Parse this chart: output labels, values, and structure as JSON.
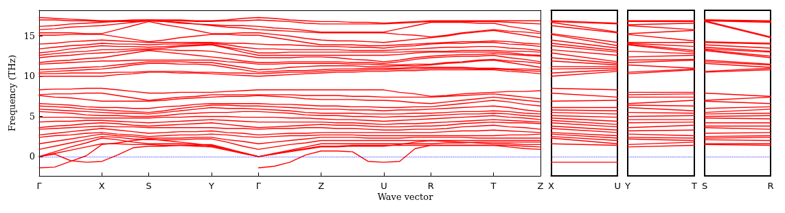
{
  "chart_data": [
    {
      "type": "line",
      "xlabel": "Wave vector",
      "ylabel": "Frequency (THz)",
      "color": "#ff0000",
      "marker": "none",
      "line_style": "solid",
      "grid": false,
      "categories": [
        "Γ",
        null,
        null,
        null,
        "X",
        null,
        null,
        "S",
        null,
        null,
        null,
        "Y",
        null,
        null,
        "Γ",
        null,
        null,
        null,
        "Z",
        null,
        null,
        null,
        "U",
        null,
        null,
        "R",
        null,
        null,
        null,
        "T",
        null,
        null,
        "Z"
      ],
      "ylim": [
        -2.4,
        18.2
      ],
      "yticks": [
        0,
        5,
        10,
        15
      ],
      "ref_lines": [
        {
          "axis": "y",
          "value": 0,
          "color": "#0000ff",
          "line_style": "dotted"
        }
      ],
      "series": [
        {
          "values": [
            -1.4,
            -1.3,
            -0.6,
            0.1,
            1.5,
            1.7,
            2.0,
            2.2,
            2.0,
            1.8,
            1.6,
            1.3,
            0.9,
            0.4,
            0,
            null,
            null,
            null,
            null,
            null,
            null,
            null,
            null,
            null,
            null,
            null,
            null,
            null,
            null,
            null,
            null,
            null,
            null
          ]
        },
        {
          "values": [
            null,
            null,
            null,
            null,
            null,
            null,
            null,
            null,
            null,
            null,
            null,
            null,
            null,
            null,
            -1.4,
            -1.2,
            -0.7,
            0.2,
            0.7,
            0.7,
            0.6,
            -0.6,
            -0.7,
            -0.6,
            1.0,
            1.4,
            1.4,
            1.4,
            1.4,
            1.4,
            1.2,
            1.0,
            0.9
          ]
        },
        {
          "values": [
            0,
            0.3,
            -0.5,
            -0.7,
            -0.6,
            0.2,
            1.1,
            1.3,
            1.3,
            1.4,
            1.4,
            1.4,
            0.9,
            0.5,
            0,
            0.3,
            0.6,
            0.9,
            1.2,
            1.2,
            1.3,
            1.3,
            1.3,
            1.5,
            1.8,
            2.0,
            1.9,
            1.8,
            1.7,
            1.6,
            1.6,
            1.5,
            1.5
          ]
        },
        {
          "values": [
            0,
            0.4,
            0.8,
            1.2,
            1.6,
            1.6,
            1.5,
            1.5,
            1.4,
            1.4,
            1.3,
            1.2,
            0.8,
            0.4,
            0,
            0.3,
            0.7,
            1.0,
            1.3,
            1.3,
            1.4,
            1.4,
            1.4,
            1.4,
            1.4,
            1.4,
            1.4,
            1.4,
            1.4,
            1.4,
            1.4,
            1.3,
            1.2
          ]
        },
        {
          "values": [
            0,
            0.6,
            1.2,
            1.7,
            2.3,
            2.1,
            1.8,
            1.6,
            1.6,
            1.6,
            1.5,
            1.5,
            1.0,
            0.5,
            0,
            0.4,
            0.8,
            1.2,
            1.6,
            1.6,
            1.6,
            1.6,
            1.6,
            1.6,
            1.6,
            1.6,
            1.7,
            1.7,
            1.8,
            1.8,
            1.8,
            1.8,
            1.8
          ]
        },
        {
          "values": [
            0.9,
            1.3,
            1.7,
            2.1,
            2.5,
            2.4,
            2.2,
            2.1,
            2.1,
            2.1,
            2.2,
            2.2,
            1.8,
            1.3,
            0.9,
            1.2,
            1.5,
            1.7,
            2.0,
            2.0,
            2.0,
            2.0,
            2.0,
            2.0,
            2.0,
            2.0,
            2.0,
            2.0,
            2.0,
            2.0,
            2.0,
            2.0,
            2.0
          ]
        },
        {
          "values": [
            1.6,
            1.9,
            2.2,
            2.5,
            2.8,
            2.6,
            2.5,
            2.3,
            2.3,
            2.3,
            2.4,
            2.4,
            2.1,
            1.9,
            1.6,
            1.8,
            2.0,
            2.2,
            2.4,
            2.4,
            2.4,
            2.3,
            2.3,
            2.3,
            2.4,
            2.4,
            2.4,
            2.4,
            2.3,
            2.3,
            2.3,
            2.3,
            2.3
          ]
        },
        {
          "values": [
            2.4,
            2.6,
            2.7,
            2.9,
            3.0,
            2.8,
            2.7,
            2.5,
            2.6,
            2.7,
            2.7,
            2.8,
            2.7,
            2.5,
            2.4,
            2.5,
            2.6,
            2.6,
            2.7,
            2.7,
            2.7,
            2.6,
            2.6,
            2.6,
            2.6,
            2.6,
            2.6,
            2.6,
            2.6,
            2.6,
            2.7,
            2.7,
            2.8
          ]
        },
        {
          "values": [
            2.7,
            2.9,
            3.1,
            3.3,
            3.5,
            3.3,
            3.1,
            2.9,
            3.0,
            3.1,
            3.1,
            3.2,
            3.0,
            2.9,
            2.7,
            2.8,
            2.9,
            2.9,
            3.0,
            3.0,
            3.0,
            3.0,
            3.0,
            3.0,
            3.0,
            3.0,
            3.1,
            3.2,
            3.2,
            3.3,
            3.2,
            3.1,
            3.0
          ]
        },
        {
          "values": [
            3.4,
            3.5,
            3.6,
            3.7,
            3.8,
            3.7,
            3.7,
            3.6,
            3.6,
            3.6,
            3.6,
            3.6,
            3.5,
            3.5,
            3.4,
            3.5,
            3.5,
            3.6,
            3.6,
            3.5,
            3.5,
            3.4,
            3.3,
            3.3,
            3.4,
            3.4,
            3.5,
            3.7,
            3.8,
            3.9,
            3.7,
            3.6,
            3.4
          ]
        },
        {
          "values": [
            3.6,
            3.8,
            3.9,
            4.1,
            4.2,
            4.1,
            3.9,
            3.8,
            3.9,
            4.0,
            4.1,
            4.2,
            4.0,
            3.8,
            3.6,
            3.7,
            3.8,
            3.9,
            4.0,
            3.9,
            3.9,
            3.8,
            3.7,
            3.7,
            3.8,
            3.8,
            3.9,
            4.1,
            4.2,
            4.3,
            4.2,
            4.2,
            4.1
          ]
        },
        {
          "values": [
            4.3,
            4.4,
            4.4,
            4.5,
            4.5,
            4.4,
            4.3,
            4.2,
            4.3,
            4.4,
            4.5,
            4.6,
            4.5,
            4.4,
            4.3,
            4.3,
            4.3,
            4.3,
            4.3,
            4.2,
            4.2,
            4.1,
            4.0,
            4.1,
            4.1,
            4.2,
            4.3,
            4.4,
            4.5,
            4.6,
            4.5,
            4.4,
            4.3
          ]
        },
        {
          "values": [
            4.9,
            4.9,
            4.9,
            4.8,
            4.8,
            4.8,
            4.8,
            4.8,
            4.9,
            4.9,
            5.0,
            5.0,
            5.0,
            4.9,
            4.9,
            4.9,
            4.8,
            4.8,
            4.7,
            4.6,
            4.6,
            4.5,
            4.4,
            4.5,
            4.6,
            4.7,
            4.8,
            4.9,
            5.0,
            5.1,
            4.9,
            4.8,
            4.6
          ]
        },
        {
          "values": [
            5.6,
            5.5,
            5.4,
            5.2,
            5.1,
            5.1,
            5.0,
            5.0,
            5.1,
            5.3,
            5.4,
            5.5,
            5.5,
            5.6,
            5.6,
            5.5,
            5.4,
            5.2,
            5.1,
            5.1,
            5.0,
            5.0,
            4.9,
            5.0,
            5.0,
            5.1,
            5.2,
            5.3,
            5.3,
            5.4,
            5.3,
            5.1,
            5.0
          ]
        },
        {
          "values": [
            5.9,
            5.8,
            5.7,
            5.6,
            5.5,
            5.4,
            5.4,
            5.3,
            5.5,
            5.7,
            5.9,
            6.1,
            6.0,
            6.0,
            5.9,
            5.8,
            5.7,
            5.5,
            5.4,
            5.4,
            5.4,
            5.3,
            5.3,
            5.3,
            5.4,
            5.4,
            5.5,
            5.6,
            5.6,
            5.7,
            5.6,
            5.4,
            5.3
          ]
        },
        {
          "values": [
            6.3,
            6.2,
            6.1,
            5.9,
            5.8,
            5.7,
            5.6,
            5.5,
            5.7,
            6.0,
            6.2,
            6.4,
            6.4,
            6.3,
            6.3,
            6.2,
            6.1,
            6.0,
            5.9,
            5.9,
            5.8,
            5.8,
            5.7,
            5.8,
            5.8,
            5.9,
            6.0,
            6.1,
            6.2,
            6.3,
            6.1,
            5.8,
            5.6
          ]
        },
        {
          "values": [
            6.6,
            6.5,
            6.4,
            6.2,
            6.1,
            6.1,
            6.0,
            6.0,
            6.2,
            6.3,
            6.5,
            6.6,
            6.6,
            6.6,
            6.6,
            6.5,
            6.5,
            6.4,
            6.3,
            6.3,
            6.2,
            6.2,
            6.1,
            6.1,
            6.2,
            6.2,
            6.4,
            6.6,
            6.8,
            7.0,
            6.8,
            6.5,
            6.3
          ]
        },
        {
          "values": [
            7.6,
            7.4,
            7.3,
            7.1,
            6.9,
            6.9,
            6.9,
            6.9,
            7.0,
            7.2,
            7.3,
            7.4,
            7.5,
            7.5,
            7.6,
            7.5,
            7.4,
            7.2,
            7.1,
            7.1,
            7.1,
            7.0,
            7.0,
            6.9,
            6.7,
            6.6,
            6.8,
            7.0,
            7.2,
            7.4,
            7.2,
            7.0,
            6.8
          ]
        },
        {
          "values": [
            7.7,
            7.8,
            7.8,
            7.9,
            7.9,
            7.6,
            7.3,
            7.0,
            7.2,
            7.4,
            7.5,
            7.7,
            7.7,
            7.7,
            7.7,
            7.7,
            7.7,
            7.6,
            7.6,
            7.6,
            7.5,
            7.5,
            7.4,
            7.4,
            7.4,
            7.4,
            7.5,
            7.6,
            7.7,
            7.8,
            7.6,
            7.4,
            7.2
          ]
        },
        {
          "values": [
            8.3,
            8.4,
            8.4,
            8.5,
            8.5,
            8.3,
            8.1,
            7.9,
            7.9,
            8.0,
            8.0,
            8.0,
            8.1,
            8.2,
            8.3,
            8.3,
            8.3,
            8.3,
            8.3,
            8.3,
            8.3,
            8.3,
            8.3,
            8.0,
            7.8,
            7.5,
            7.6,
            7.8,
            7.9,
            8.0,
            8.1,
            8.1,
            8.2
          ]
        },
        {
          "values": [
            10.0,
            10.0,
            10.0,
            10.0,
            10.0,
            10.2,
            10.3,
            10.5,
            10.5,
            10.4,
            10.4,
            10.3,
            10.2,
            10.1,
            10.0,
            10.1,
            10.2,
            10.3,
            10.4,
            10.5,
            10.5,
            10.6,
            10.6,
            10.7,
            10.7,
            10.8,
            10.8,
            10.8,
            10.8,
            10.8,
            10.6,
            10.5,
            10.3
          ]
        },
        {
          "values": [
            10.3,
            10.3,
            10.4,
            10.4,
            10.4,
            10.5,
            10.5,
            10.6,
            10.6,
            10.6,
            10.5,
            10.5,
            10.4,
            10.4,
            10.3,
            10.4,
            10.5,
            10.5,
            10.6,
            10.7,
            10.7,
            10.8,
            10.8,
            10.9,
            10.9,
            11.0,
            11.0,
            11.0,
            10.9,
            10.9,
            10.8,
            10.7,
            10.6
          ]
        },
        {
          "values": [
            10.5,
            10.6,
            10.7,
            10.8,
            10.9,
            11.1,
            11.4,
            11.6,
            11.6,
            11.5,
            11.5,
            11.4,
            11.1,
            10.8,
            10.5,
            10.6,
            10.7,
            10.7,
            10.8,
            10.9,
            10.9,
            11.0,
            11.0,
            11.0,
            11.1,
            11.1,
            11.1,
            11.1,
            11.0,
            11.0,
            10.9,
            10.9,
            10.8
          ]
        },
        {
          "values": [
            10.8,
            10.9,
            11.0,
            11.1,
            11.2,
            11.4,
            11.6,
            11.8,
            11.8,
            11.8,
            11.7,
            11.7,
            11.4,
            11.1,
            10.8,
            10.9,
            11.1,
            11.2,
            11.3,
            11.3,
            11.3,
            11.2,
            11.2,
            11.3,
            11.3,
            11.4,
            11.6,
            11.7,
            11.9,
            12.0,
            11.7,
            11.4,
            11.1
          ]
        },
        {
          "values": [
            11.5,
            11.6,
            11.7,
            11.8,
            11.9,
            11.9,
            12.0,
            12.0,
            12.0,
            12.0,
            12.0,
            12.0,
            11.8,
            11.7,
            11.5,
            11.5,
            11.6,
            11.6,
            11.6,
            11.6,
            11.5,
            11.5,
            11.4,
            11.4,
            11.5,
            11.5,
            11.7,
            11.8,
            12.0,
            12.1,
            11.9,
            11.8,
            11.6
          ]
        },
        {
          "values": [
            11.7,
            11.9,
            12.0,
            12.2,
            12.3,
            12.6,
            12.9,
            13.2,
            13.0,
            12.8,
            12.6,
            12.4,
            12.2,
            11.9,
            11.7,
            11.7,
            11.8,
            11.8,
            11.8,
            11.8,
            11.7,
            11.7,
            11.6,
            11.8,
            12.1,
            12.3,
            12.4,
            12.5,
            12.5,
            12.6,
            12.3,
            12.1,
            11.8
          ]
        },
        {
          "values": [
            12.3,
            12.5,
            12.6,
            12.8,
            12.9,
            13.0,
            13.2,
            13.3,
            13.3,
            13.2,
            13.2,
            13.1,
            12.8,
            12.6,
            12.3,
            12.3,
            12.3,
            12.4,
            12.4,
            12.3,
            12.1,
            12.0,
            11.8,
            12.0,
            12.3,
            12.5,
            12.6,
            12.7,
            12.7,
            12.8,
            12.7,
            12.6,
            12.5
          ]
        },
        {
          "values": [
            12.6,
            12.8,
            13.0,
            13.1,
            13.3,
            13.3,
            13.4,
            13.4,
            13.5,
            13.7,
            13.8,
            13.9,
            13.5,
            13.0,
            12.6,
            12.6,
            12.6,
            12.6,
            12.6,
            12.6,
            12.6,
            12.6,
            12.6,
            12.7,
            12.9,
            13.0,
            13.0,
            13.0,
            13.0,
            13.0,
            12.9,
            12.7,
            12.6
          ]
        },
        {
          "values": [
            12.9,
            13.1,
            13.4,
            13.6,
            13.8,
            13.7,
            13.7,
            13.6,
            13.7,
            13.8,
            13.9,
            14.0,
            13.6,
            13.3,
            12.9,
            12.9,
            13.0,
            13.0,
            13.0,
            13.0,
            13.0,
            13.0,
            13.0,
            13.0,
            13.1,
            13.1,
            13.1,
            13.2,
            13.2,
            13.2,
            13.1,
            13.1,
            13.0
          ]
        },
        {
          "values": [
            13.4,
            13.6,
            13.8,
            13.9,
            14.1,
            14.0,
            14.0,
            13.9,
            14.0,
            14.0,
            14.1,
            14.1,
            13.9,
            13.6,
            13.4,
            13.4,
            13.3,
            13.3,
            13.3,
            13.3,
            13.2,
            13.2,
            13.2,
            13.3,
            13.4,
            13.5,
            13.6,
            13.6,
            13.7,
            13.7,
            13.5,
            13.4,
            13.2
          ]
        },
        {
          "values": [
            14.0,
            14.1,
            14.3,
            14.4,
            14.5,
            14.4,
            14.3,
            14.2,
            14.2,
            14.2,
            14.2,
            14.2,
            14.1,
            14.1,
            14.0,
            13.9,
            13.9,
            13.8,
            13.7,
            13.7,
            13.6,
            13.6,
            13.5,
            13.7,
            13.8,
            14.0,
            14.1,
            14.1,
            14.2,
            14.2,
            14.0,
            13.9,
            13.7
          ]
        },
        {
          "values": [
            15.1,
            15.1,
            15.2,
            15.2,
            15.2,
            14.9,
            14.6,
            14.3,
            14.5,
            14.8,
            15.0,
            15.2,
            15.2,
            15.1,
            15.1,
            14.8,
            14.5,
            14.2,
            13.9,
            13.9,
            13.9,
            13.8,
            13.8,
            13.9,
            14.0,
            14.1,
            14.2,
            14.3,
            14.3,
            14.4,
            14.3,
            14.1,
            14.0
          ]
        },
        {
          "values": [
            15.4,
            15.4,
            15.4,
            15.3,
            15.3,
            15.8,
            16.3,
            16.8,
            16.4,
            16.1,
            15.7,
            15.3,
            15.3,
            15.4,
            15.4,
            15.2,
            15.0,
            14.7,
            14.5,
            14.4,
            14.4,
            14.3,
            14.2,
            14.4,
            14.6,
            14.8,
            15.0,
            15.3,
            15.5,
            15.7,
            15.4,
            15.1,
            14.8
          ]
        },
        {
          "values": [
            15.8,
            15.9,
            16.1,
            16.2,
            16.3,
            16.5,
            16.7,
            16.9,
            16.8,
            16.6,
            16.5,
            16.3,
            16.1,
            16.0,
            15.8,
            15.7,
            15.6,
            15.5,
            15.4,
            15.4,
            15.4,
            15.4,
            15.4,
            15.2,
            15.1,
            14.9,
            15.1,
            15.4,
            15.6,
            15.8,
            15.6,
            15.5,
            15.3
          ]
        },
        {
          "values": [
            16.2,
            16.3,
            16.5,
            16.6,
            16.7,
            16.8,
            16.8,
            16.9,
            16.8,
            16.7,
            16.5,
            16.4,
            16.3,
            16.3,
            16.2,
            16.0,
            15.9,
            15.7,
            15.5,
            15.5,
            15.5,
            15.5,
            15.5,
            15.9,
            16.3,
            16.7,
            16.7,
            16.7,
            16.6,
            16.6,
            16.2,
            15.9,
            15.5
          ]
        },
        {
          "values": [
            17.0,
            17.0,
            16.9,
            16.9,
            16.8,
            16.9,
            16.9,
            17.0,
            16.9,
            16.9,
            16.8,
            16.8,
            16.9,
            16.9,
            17.0,
            16.9,
            16.8,
            16.6,
            16.5,
            16.5,
            16.5,
            16.5,
            16.5,
            16.6,
            16.7,
            16.8,
            16.8,
            16.8,
            16.8,
            16.8,
            16.7,
            16.6,
            16.5
          ]
        },
        {
          "values": [
            17.3,
            17.2,
            17.1,
            17.0,
            16.9,
            16.9,
            17.0,
            17.0,
            17.0,
            17.0,
            16.9,
            16.9,
            17.0,
            17.2,
            17.3,
            17.2,
            17.0,
            16.9,
            16.8,
            16.8,
            16.7,
            16.7,
            16.6,
            16.7,
            16.8,
            16.9,
            16.9,
            16.9,
            16.9,
            16.9,
            16.9,
            16.9,
            16.9
          ]
        }
      ]
    },
    {
      "type": "line",
      "color": "#ff0000",
      "marker": "none",
      "line_style": "solid",
      "tick_labels": "x",
      "categories": [
        "X",
        "U"
      ],
      "ylim": [
        -2.4,
        18.2
      ],
      "ref_lines": [
        {
          "axis": "y",
          "value": 0,
          "color": "#0000ff",
          "line_style": "dotted"
        }
      ],
      "series": [
        {
          "values": [
            -0.7,
            -0.7
          ]
        },
        {
          "values": [
            1.6,
            1.4
          ]
        },
        {
          "values": [
            2.3,
            1.6
          ]
        },
        {
          "values": [
            2.5,
            2.0
          ]
        },
        {
          "values": [
            2.8,
            2.3
          ]
        },
        {
          "values": [
            3.0,
            2.6
          ]
        },
        {
          "values": [
            3.5,
            3.0
          ]
        },
        {
          "values": [
            3.8,
            3.3
          ]
        },
        {
          "values": [
            4.2,
            3.7
          ]
        },
        {
          "values": [
            4.5,
            4.0
          ]
        },
        {
          "values": [
            4.8,
            4.4
          ]
        },
        {
          "values": [
            5.1,
            4.9
          ]
        },
        {
          "values": [
            5.5,
            5.3
          ]
        },
        {
          "values": [
            5.8,
            5.7
          ]
        },
        {
          "values": [
            6.1,
            6.1
          ]
        },
        {
          "values": [
            6.9,
            7.0
          ]
        },
        {
          "values": [
            7.9,
            7.4
          ]
        },
        {
          "values": [
            8.5,
            8.3
          ]
        },
        {
          "values": [
            10.0,
            10.6
          ]
        },
        {
          "values": [
            10.4,
            10.8
          ]
        },
        {
          "values": [
            10.9,
            11.0
          ]
        },
        {
          "values": [
            11.2,
            11.2
          ]
        },
        {
          "values": [
            11.9,
            11.4
          ]
        },
        {
          "values": [
            12.3,
            11.6
          ]
        },
        {
          "values": [
            12.9,
            11.8
          ]
        },
        {
          "values": [
            13.3,
            12.6
          ]
        },
        {
          "values": [
            13.8,
            13.0
          ]
        },
        {
          "values": [
            14.1,
            13.2
          ]
        },
        {
          "values": [
            14.5,
            13.5
          ]
        },
        {
          "values": [
            15.2,
            13.8
          ]
        },
        {
          "values": [
            15.3,
            14.2
          ]
        },
        {
          "values": [
            16.3,
            15.4
          ]
        },
        {
          "values": [
            16.7,
            15.5
          ]
        },
        {
          "values": [
            16.8,
            16.5
          ]
        },
        {
          "values": [
            16.9,
            16.6
          ]
        }
      ]
    },
    {
      "type": "line",
      "color": "#ff0000",
      "marker": "none",
      "line_style": "solid",
      "tick_labels": "x",
      "categories": [
        "Y",
        "T"
      ],
      "ylim": [
        -2.4,
        18.2
      ],
      "ref_lines": [
        {
          "axis": "y",
          "value": 0,
          "color": "#0000ff",
          "line_style": "dotted"
        }
      ],
      "series": [
        {
          "values": [
            1.2,
            1.4
          ]
        },
        {
          "values": [
            1.5,
            1.8
          ]
        },
        {
          "values": [
            2.2,
            2.0
          ]
        },
        {
          "values": [
            2.4,
            2.3
          ]
        },
        {
          "values": [
            2.8,
            2.6
          ]
        },
        {
          "values": [
            3.2,
            3.3
          ]
        },
        {
          "values": [
            3.6,
            3.9
          ]
        },
        {
          "values": [
            4.2,
            4.3
          ]
        },
        {
          "values": [
            4.6,
            4.6
          ]
        },
        {
          "values": [
            5.0,
            5.1
          ]
        },
        {
          "values": [
            5.5,
            5.4
          ]
        },
        {
          "values": [
            6.1,
            5.7
          ]
        },
        {
          "values": [
            6.4,
            6.3
          ]
        },
        {
          "values": [
            6.6,
            7.0
          ]
        },
        {
          "values": [
            7.4,
            7.4
          ]
        },
        {
          "values": [
            7.7,
            7.8
          ]
        },
        {
          "values": [
            8.0,
            8.0
          ]
        },
        {
          "values": [
            10.3,
            10.8
          ]
        },
        {
          "values": [
            10.5,
            10.9
          ]
        },
        {
          "values": [
            11.4,
            11.0
          ]
        },
        {
          "values": [
            11.7,
            12.0
          ]
        },
        {
          "values": [
            12.0,
            12.1
          ]
        },
        {
          "values": [
            12.4,
            12.6
          ]
        },
        {
          "values": [
            13.1,
            12.8
          ]
        },
        {
          "values": [
            13.9,
            13.0
          ]
        },
        {
          "values": [
            14.0,
            13.2
          ]
        },
        {
          "values": [
            14.1,
            13.7
          ]
        },
        {
          "values": [
            14.2,
            14.2
          ]
        },
        {
          "values": [
            15.2,
            14.4
          ]
        },
        {
          "values": [
            15.3,
            15.7
          ]
        },
        {
          "values": [
            16.3,
            15.8
          ]
        },
        {
          "values": [
            16.4,
            16.6
          ]
        },
        {
          "values": [
            16.8,
            16.8
          ]
        },
        {
          "values": [
            16.9,
            16.9
          ]
        }
      ]
    },
    {
      "type": "line",
      "color": "#ff0000",
      "marker": "none",
      "line_style": "solid",
      "tick_labels": "x",
      "categories": [
        "S",
        "R"
      ],
      "ylim": [
        -2.4,
        18.2
      ],
      "ref_lines": [
        {
          "axis": "y",
          "value": 0,
          "color": "#0000ff",
          "line_style": "dotted"
        }
      ],
      "series": [
        {
          "values": [
            1.5,
            1.4
          ]
        },
        {
          "values": [
            1.6,
            1.6
          ]
        },
        {
          "values": [
            2.1,
            2.0
          ]
        },
        {
          "values": [
            2.3,
            2.4
          ]
        },
        {
          "values": [
            2.5,
            2.6
          ]
        },
        {
          "values": [
            2.9,
            3.0
          ]
        },
        {
          "values": [
            3.6,
            3.4
          ]
        },
        {
          "values": [
            3.8,
            3.8
          ]
        },
        {
          "values": [
            4.2,
            4.2
          ]
        },
        {
          "values": [
            4.8,
            4.7
          ]
        },
        {
          "values": [
            5.0,
            5.1
          ]
        },
        {
          "values": [
            5.3,
            5.4
          ]
        },
        {
          "values": [
            5.5,
            5.9
          ]
        },
        {
          "values": [
            6.0,
            6.2
          ]
        },
        {
          "values": [
            6.9,
            6.6
          ]
        },
        {
          "values": [
            7.0,
            7.4
          ]
        },
        {
          "values": [
            7.9,
            7.5
          ]
        },
        {
          "values": [
            10.5,
            10.8
          ]
        },
        {
          "values": [
            10.6,
            11.0
          ]
        },
        {
          "values": [
            11.6,
            11.1
          ]
        },
        {
          "values": [
            11.8,
            11.4
          ]
        },
        {
          "values": [
            12.0,
            11.5
          ]
        },
        {
          "values": [
            13.2,
            12.3
          ]
        },
        {
          "values": [
            13.3,
            12.5
          ]
        },
        {
          "values": [
            13.4,
            13.0
          ]
        },
        {
          "values": [
            13.6,
            13.1
          ]
        },
        {
          "values": [
            13.9,
            13.5
          ]
        },
        {
          "values": [
            14.2,
            14.0
          ]
        },
        {
          "values": [
            14.3,
            14.1
          ]
        },
        {
          "values": [
            16.8,
            14.8
          ]
        },
        {
          "values": [
            16.9,
            14.9
          ]
        },
        {
          "values": [
            16.9,
            16.7
          ]
        },
        {
          "values": [
            17.0,
            16.8
          ]
        },
        {
          "values": [
            17.0,
            16.9
          ]
        }
      ]
    }
  ]
}
